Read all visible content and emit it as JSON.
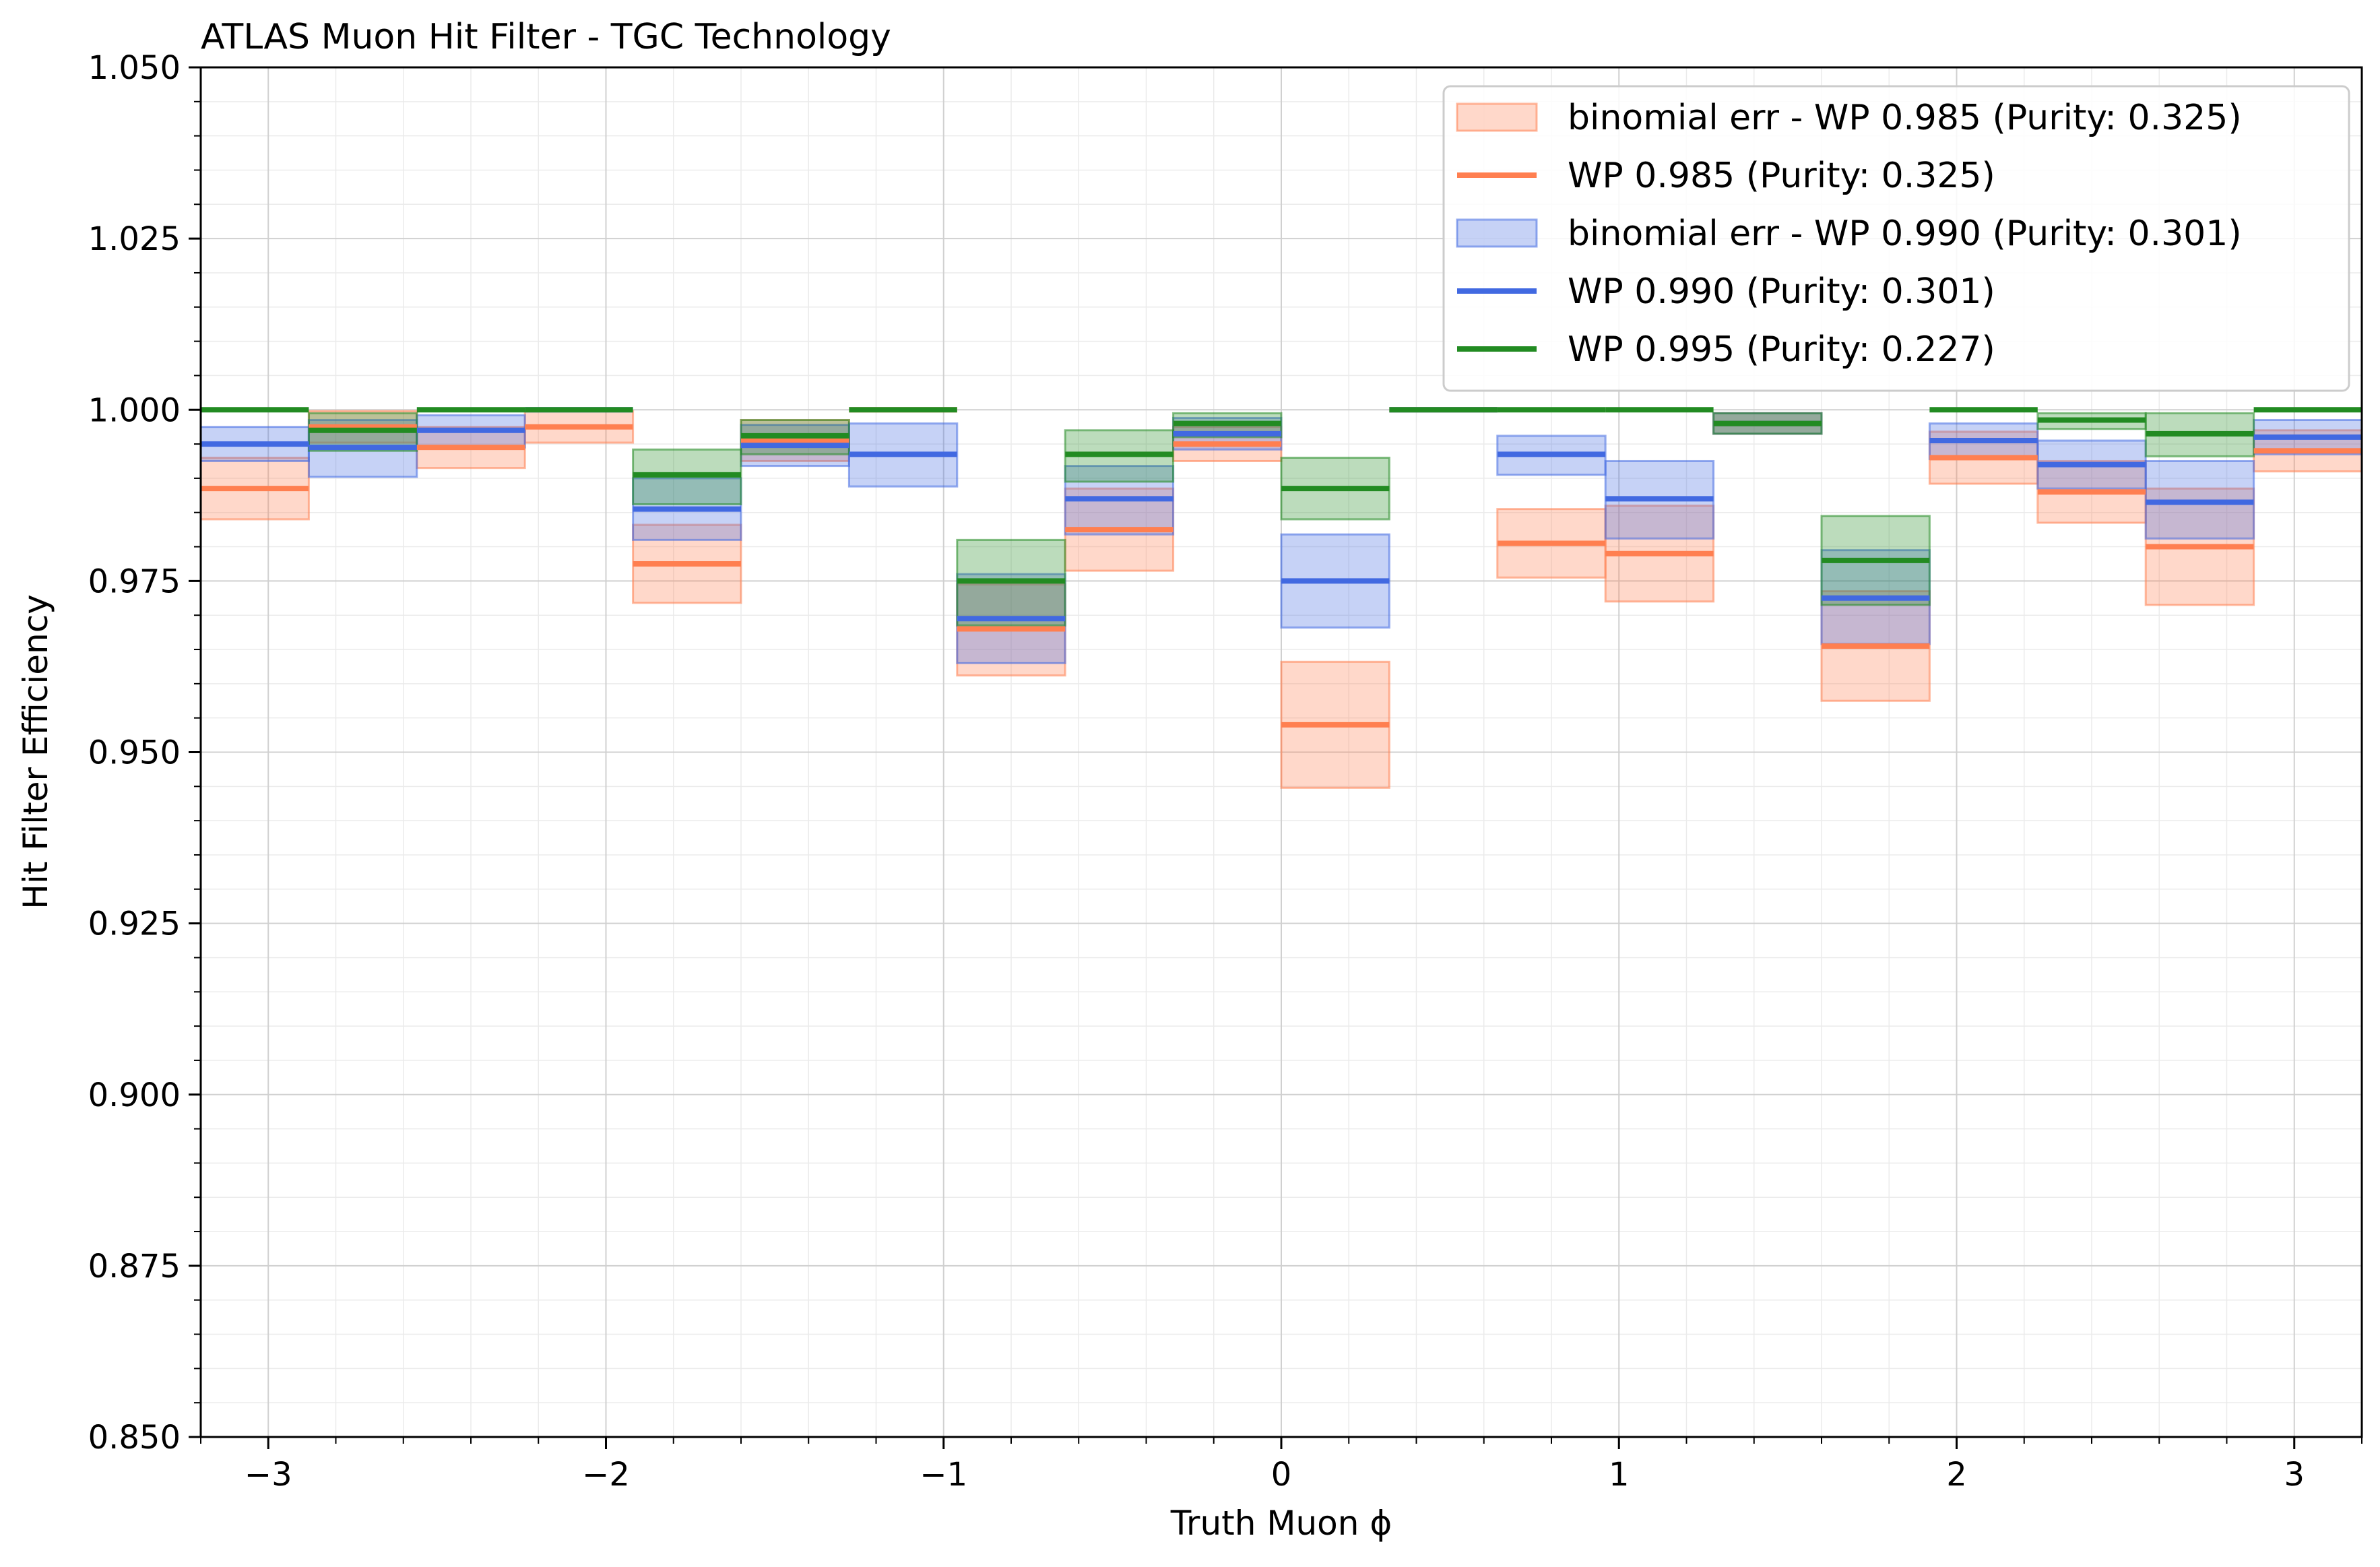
{
  "chart_data": {
    "type": "line",
    "title": "ATLAS Muon Hit Filter - TGC Technology",
    "xlabel": "Truth Muon ϕ",
    "ylabel": "Hit Filter Efficiency",
    "xlim": [
      -3.2,
      3.2
    ],
    "ylim": [
      0.85,
      1.05
    ],
    "x_ticks": [
      -3,
      -2,
      -1,
      0,
      1,
      2,
      3
    ],
    "x_tick_labels": [
      "−3",
      "−2",
      "−1",
      "0",
      "1",
      "2",
      "3"
    ],
    "y_ticks": [
      0.85,
      0.875,
      0.9,
      0.925,
      0.95,
      0.975,
      1.0,
      1.025,
      1.05
    ],
    "y_tick_labels": [
      "0.850",
      "0.875",
      "0.900",
      "0.925",
      "0.950",
      "0.975",
      "1.000",
      "1.025",
      "1.050"
    ],
    "grid": true,
    "legend_position": "top-right",
    "bin_edges": [
      -3.2,
      -2.88,
      -2.56,
      -2.24,
      -1.92,
      -1.6,
      -1.28,
      -0.96,
      -0.64,
      -0.32,
      0.0,
      0.32,
      0.64,
      0.96,
      1.28,
      1.6,
      1.92,
      2.24,
      2.56,
      2.88,
      3.2
    ],
    "series": [
      {
        "name": "WP 0.985 (Purity: 0.325)",
        "band_name": "binomial err - WP 0.985 (Purity: 0.325)",
        "color": "#FF7F50",
        "values": [
          0.9885,
          0.9975,
          0.9945,
          0.9975,
          0.9775,
          0.9955,
          1.0,
          0.968,
          0.9825,
          0.995,
          0.954,
          1.0,
          0.9805,
          0.979,
          0.998,
          0.9655,
          0.993,
          0.988,
          0.98,
          0.994
        ],
        "lower": [
          0.984,
          0.9952,
          0.9915,
          0.9952,
          0.9718,
          0.9925,
          1.0,
          0.9612,
          0.9765,
          0.9925,
          0.9448,
          1.0,
          0.9755,
          0.972,
          0.9965,
          0.9575,
          0.9892,
          0.9835,
          0.9715,
          0.991
        ],
        "upper": [
          0.993,
          0.9998,
          0.9975,
          0.9998,
          0.9832,
          0.9985,
          1.0,
          0.9745,
          0.9885,
          0.9975,
          0.9632,
          1.0,
          0.9855,
          0.986,
          0.9995,
          0.9735,
          0.9968,
          0.9925,
          0.9885,
          0.997
        ]
      },
      {
        "name": "WP 0.990 (Purity: 0.301)",
        "band_name": "binomial err - WP 0.990 (Purity: 0.301)",
        "color": "#4169E1",
        "values": [
          0.995,
          0.9945,
          0.997,
          1.0,
          0.9855,
          0.9948,
          0.9935,
          0.9695,
          0.987,
          0.9965,
          0.975,
          1.0,
          0.9935,
          0.987,
          0.998,
          0.9725,
          0.9955,
          0.992,
          0.9865,
          0.996
        ],
        "lower": [
          0.9925,
          0.9902,
          0.9945,
          1.0,
          0.981,
          0.9918,
          0.9888,
          0.963,
          0.9818,
          0.9942,
          0.9682,
          1.0,
          0.9905,
          0.9812,
          0.9965,
          0.9658,
          0.9928,
          0.9885,
          0.9812,
          0.9935
        ],
        "upper": [
          0.9975,
          0.9985,
          0.9992,
          1.0,
          0.99,
          0.9978,
          0.998,
          0.976,
          0.9918,
          0.9988,
          0.9818,
          1.0,
          0.9962,
          0.9925,
          0.9995,
          0.9795,
          0.998,
          0.9955,
          0.9925,
          0.9985
        ]
      },
      {
        "name": "WP 0.995 (Purity: 0.227)",
        "band_name": "",
        "color": "#228B22",
        "values": [
          1.0,
          0.997,
          1.0,
          1.0,
          0.9905,
          0.9962,
          1.0,
          0.975,
          0.9935,
          0.998,
          0.9885,
          1.0,
          1.0,
          1.0,
          0.998,
          0.978,
          1.0,
          0.9985,
          0.9965,
          1.0
        ],
        "lower": [
          1.0,
          0.994,
          1.0,
          1.0,
          0.9862,
          0.9935,
          1.0,
          0.9685,
          0.9895,
          0.996,
          0.984,
          1.0,
          1.0,
          1.0,
          0.9965,
          0.9715,
          1.0,
          0.9972,
          0.9932,
          1.0
        ],
        "upper": [
          1.0,
          0.9995,
          1.0,
          1.0,
          0.9942,
          0.9985,
          1.0,
          0.981,
          0.997,
          0.9995,
          0.993,
          1.0,
          1.0,
          1.0,
          0.9995,
          0.9845,
          1.0,
          0.9995,
          0.9995,
          1.0
        ]
      }
    ],
    "legend": [
      {
        "label": "binomial err - WP 0.985 (Purity: 0.325)",
        "kind": "band",
        "color": "#FF7F50"
      },
      {
        "label": "WP 0.985 (Purity: 0.325)",
        "kind": "line",
        "color": "#FF7F50"
      },
      {
        "label": "binomial err - WP 0.990 (Purity: 0.301)",
        "kind": "band",
        "color": "#4169E1"
      },
      {
        "label": "WP 0.990 (Purity: 0.301)",
        "kind": "line",
        "color": "#4169E1"
      },
      {
        "label": "WP 0.995 (Purity: 0.227)",
        "kind": "line",
        "color": "#228B22"
      }
    ]
  }
}
